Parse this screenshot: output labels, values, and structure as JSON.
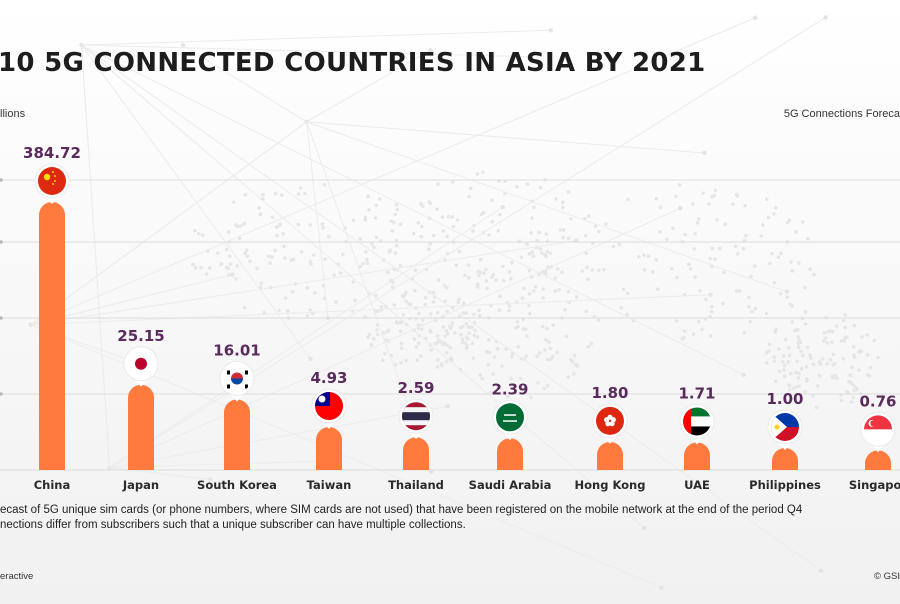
{
  "title": "10 5G CONNECTED COUNTRIES IN ASIA BY 2021",
  "unit_label": "llions",
  "forecast_label": "5G Connections Foreca",
  "footnote": {
    "line1": "ecast of 5G unique sim cards (or phone numbers, where SIM cards are not used) that have been registered on the mobile network at the end of the period Q4",
    "line2": "nections differ from subscribers such that a unique subscriber can have multiple collections."
  },
  "source_left": "eractive",
  "source_right": "© GSI",
  "colors": {
    "bar": "#ff7a3c",
    "value": "#5a2a5c",
    "grid": "#dddddd"
  },
  "chart_data": {
    "type": "bar",
    "categories": [
      "China",
      "Japan",
      "South Korea",
      "Taiwan",
      "Thailand",
      "Saudi Arabia",
      "Hong Kong",
      "UAE",
      "Philippines",
      "Singapor"
    ],
    "values": [
      384.72,
      25.15,
      16.01,
      4.93,
      2.59,
      2.39,
      1.8,
      1.71,
      1.0,
      0.76
    ],
    "value_labels": [
      "384.72",
      "25.15",
      "16.01",
      "4.93",
      "2.59",
      "2.39",
      "1.80",
      "1.71",
      "1.00",
      "0.76"
    ],
    "flags": [
      "china-flag",
      "japan-flag",
      "south-korea-flag",
      "taiwan-flag",
      "thailand-flag",
      "saudi-arabia-flag",
      "hong-kong-flag",
      "uae-flag",
      "philippines-flag",
      "singapore-flag"
    ],
    "scale": "non-linear (bars not drawn proportionally)",
    "grid": true,
    "ylabel": "llions"
  }
}
